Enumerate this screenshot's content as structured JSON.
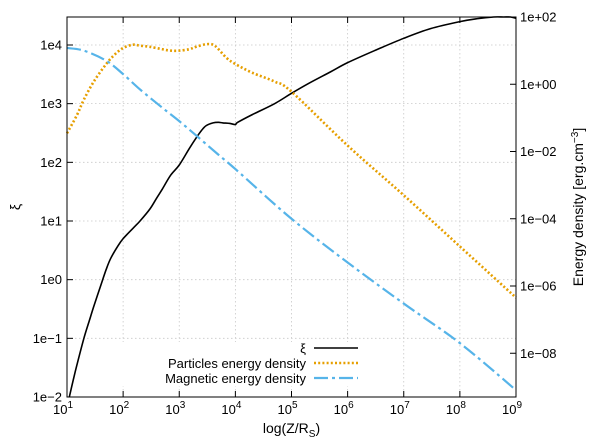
{
  "chart_data": {
    "type": "line",
    "title": "",
    "xlabel": "log(Z/R",
    "xlabel_sub": "S",
    "xlabel_close": ")",
    "ylabel_left": "ξ",
    "ylabel_right": "Energy density [erg.cm",
    "ylabel_right_sup": "−3",
    "ylabel_right_close": "]",
    "x_scale": "log",
    "y_left_scale": "log",
    "y_right_scale": "log",
    "xlim": [
      10,
      1000000000
    ],
    "ylim_left": [
      0.01,
      30000
    ],
    "ylim_right": [
      5e-10,
      100
    ],
    "grid": true,
    "legend_position": "bottom-center",
    "x_ticks": [
      {
        "value": 10,
        "base": "10",
        "exp": "1"
      },
      {
        "value": 100,
        "base": "10",
        "exp": "2"
      },
      {
        "value": 1000,
        "base": "10",
        "exp": "3"
      },
      {
        "value": 10000,
        "base": "10",
        "exp": "4"
      },
      {
        "value": 100000,
        "base": "10",
        "exp": "5"
      },
      {
        "value": 1000000,
        "base": "10",
        "exp": "6"
      },
      {
        "value": 10000000,
        "base": "10",
        "exp": "7"
      },
      {
        "value": 100000000,
        "base": "10",
        "exp": "8"
      },
      {
        "value": 1000000000,
        "base": "10",
        "exp": "9"
      }
    ],
    "y_left_ticks": [
      {
        "value": 10000,
        "label": "1e4"
      },
      {
        "value": 1000,
        "label": "1e3"
      },
      {
        "value": 100,
        "label": "1e2"
      },
      {
        "value": 10,
        "label": "1e1"
      },
      {
        "value": 1,
        "label": "1e0"
      },
      {
        "value": 0.1,
        "label": "1e−1"
      },
      {
        "value": 0.01,
        "label": "1e−2"
      }
    ],
    "y_right_ticks": [
      {
        "value": 100,
        "label": "1e+02"
      },
      {
        "value": 1,
        "label": "1e+00"
      },
      {
        "value": 0.01,
        "label": "1e−02"
      },
      {
        "value": 0.0001,
        "label": "1e−04"
      },
      {
        "value": 1e-06,
        "label": "1e−06"
      },
      {
        "value": 1e-08,
        "label": "1e−08"
      }
    ],
    "series": [
      {
        "name": "ξ",
        "axis": "left",
        "color": "#000000",
        "style": "solid",
        "x": [
          11,
          13,
          15,
          20,
          25,
          30,
          40,
          50,
          60,
          80,
          100,
          150,
          200,
          300,
          400,
          500,
          700,
          1000,
          1500,
          2000,
          2500,
          3000,
          4000,
          5000,
          6000,
          8000,
          10000,
          11000,
          20000,
          50000,
          100000,
          200000,
          500000,
          1000000,
          3000000,
          10000000,
          30000000,
          100000000,
          200000000,
          400000000,
          600000000,
          800000000,
          1000000000
        ],
        "y": [
          0.01,
          0.02,
          0.035,
          0.1,
          0.2,
          0.35,
          0.8,
          1.5,
          2.3,
          3.7,
          5,
          7.5,
          10,
          16,
          25,
          35,
          60,
          90,
          170,
          260,
          350,
          420,
          470,
          480,
          470,
          460,
          440,
          480,
          650,
          1000,
          1500,
          2200,
          3500,
          5000,
          8000,
          13000,
          19000,
          25000,
          28000,
          30000,
          30000,
          30000,
          28500
        ]
      },
      {
        "name": "Particles energy density",
        "axis": "right",
        "color": "#E69F00",
        "style": "dotted",
        "x": [
          10,
          15,
          20,
          30,
          50,
          70,
          100,
          150,
          200,
          300,
          500,
          700,
          1000,
          1500,
          2000,
          3000,
          4000,
          5000,
          7000,
          10000,
          20000,
          50000,
          100000,
          1000000,
          10000000,
          100000000,
          1000000000
        ],
        "y": [
          0.035,
          0.12,
          0.35,
          1.2,
          4,
          7.5,
          12,
          15,
          14,
          13,
          11,
          10,
          10,
          11,
          13,
          15.5,
          15,
          11,
          6,
          4,
          2.2,
          1.2,
          0.6,
          0.015,
          0.0005,
          1.5e-05,
          4.5e-07
        ]
      },
      {
        "name": "Magnetic energy density",
        "axis": "right",
        "color": "#56B4E9",
        "style": "dashdot",
        "x": [
          10,
          20,
          50,
          100,
          200,
          500,
          1000,
          2000,
          5000,
          10000,
          100000,
          1000000,
          10000000,
          100000000,
          1000000000
        ],
        "y": [
          12,
          10,
          5,
          2,
          0.7,
          0.2,
          0.08,
          0.03,
          0.008,
          0.003,
          0.0001,
          5e-06,
          3e-07,
          2e-08,
          8e-10
        ]
      }
    ]
  }
}
